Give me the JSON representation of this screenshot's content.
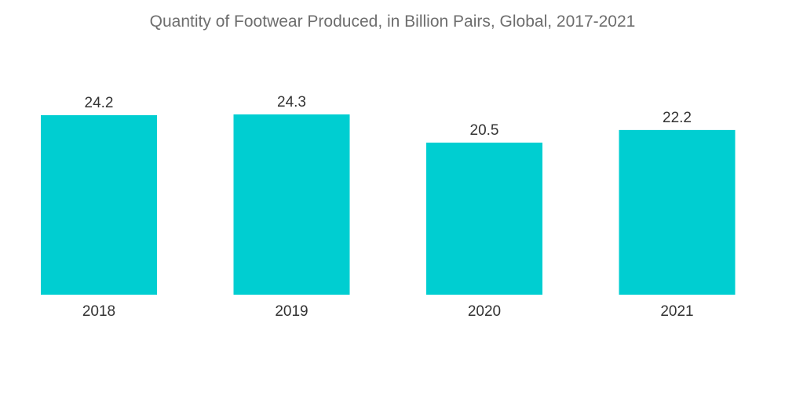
{
  "colors": {
    "bar": "#00CED1",
    "text": "#333333",
    "title": "#6e6e6e"
  },
  "chart_data": {
    "type": "bar",
    "title": "Quantity of Footwear Produced, in Billion Pairs, Global, 2017-2021",
    "xlabel": "",
    "ylabel": "",
    "categories": [
      "2018",
      "2019",
      "2020",
      "2021"
    ],
    "values": [
      24.2,
      24.3,
      20.5,
      22.2
    ],
    "data_labels": [
      "24.2",
      "24.3",
      "20.5",
      "22.2"
    ],
    "ylim": [
      0,
      24.3
    ],
    "grid": false,
    "legend": "none"
  }
}
